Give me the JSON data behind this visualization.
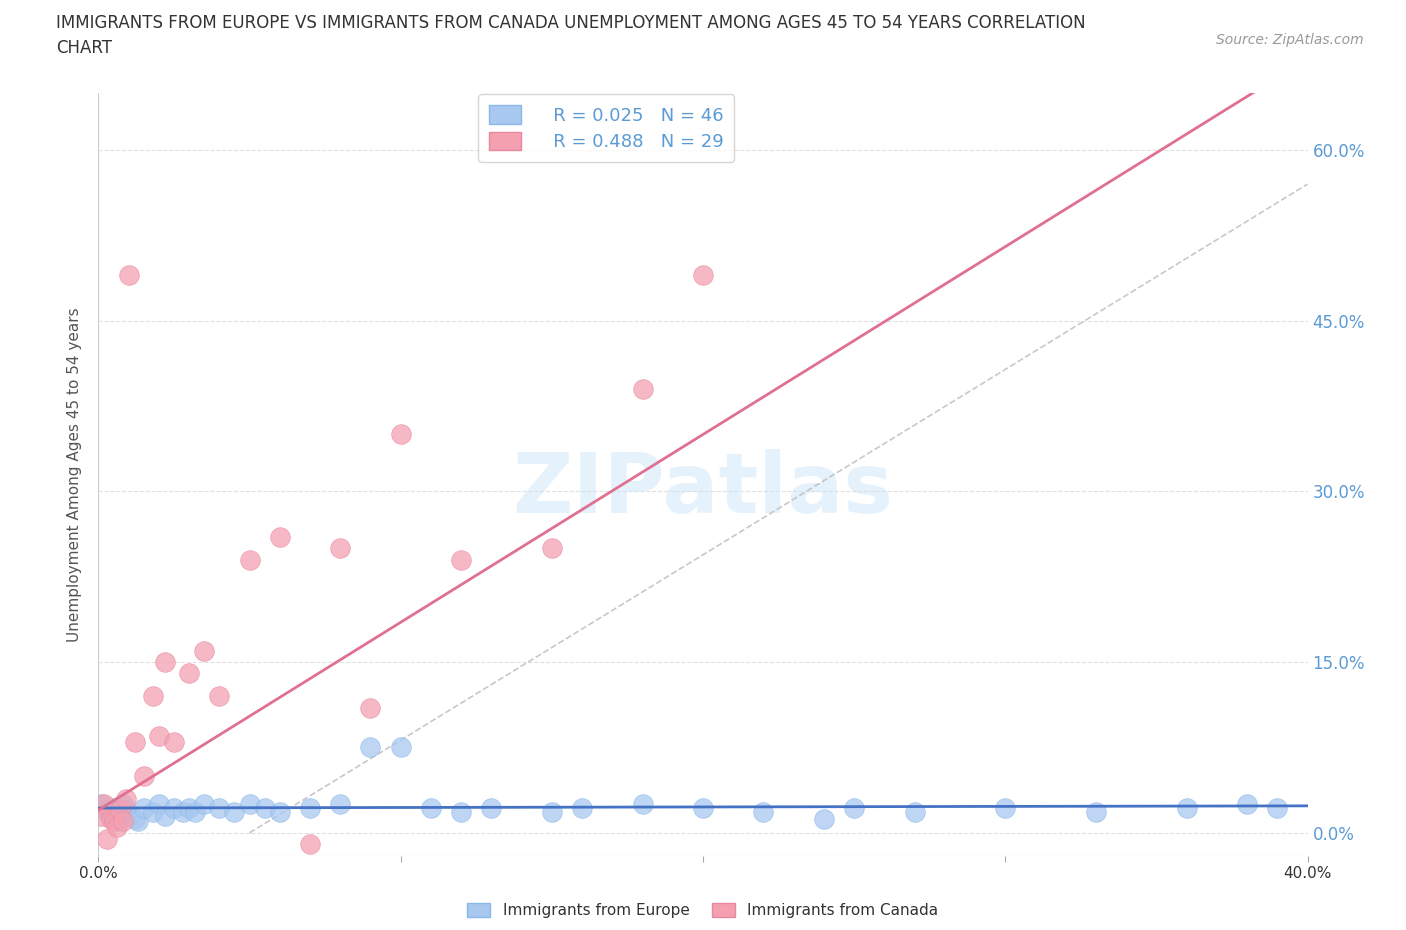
{
  "title": "IMMIGRANTS FROM EUROPE VS IMMIGRANTS FROM CANADA UNEMPLOYMENT AMONG AGES 45 TO 54 YEARS CORRELATION\nCHART",
  "source": "Source: ZipAtlas.com",
  "ylabel": "Unemployment Among Ages 45 to 54 years",
  "xlim": [
    0.0,
    0.4
  ],
  "ylim": [
    -0.02,
    0.65
  ],
  "yticks": [
    0.0,
    0.15,
    0.3,
    0.45,
    0.6
  ],
  "ytick_labels": [
    "0.0%",
    "15.0%",
    "30.0%",
    "45.0%",
    "60.0%"
  ],
  "xticks": [
    0.0,
    0.1,
    0.2,
    0.3,
    0.4
  ],
  "xtick_labels": [
    "0.0%",
    "",
    "",
    "",
    "40.0%"
  ],
  "europe_color": "#a8c8f0",
  "canada_color": "#f4a0b0",
  "europe_line_color": "#4472c4",
  "canada_line_color": "#e07090",
  "europe_R": 0.025,
  "europe_N": 46,
  "canada_R": 0.488,
  "canada_N": 29,
  "europe_x": [
    0.001,
    0.002,
    0.003,
    0.004,
    0.005,
    0.006,
    0.007,
    0.008,
    0.009,
    0.01,
    0.012,
    0.013,
    0.015,
    0.018,
    0.02,
    0.022,
    0.025,
    0.028,
    0.03,
    0.032,
    0.035,
    0.04,
    0.045,
    0.05,
    0.055,
    0.06,
    0.07,
    0.08,
    0.09,
    0.1,
    0.11,
    0.12,
    0.13,
    0.15,
    0.16,
    0.18,
    0.2,
    0.22,
    0.24,
    0.25,
    0.27,
    0.3,
    0.33,
    0.36,
    0.38,
    0.39
  ],
  "europe_y": [
    0.025,
    0.02,
    0.018,
    0.015,
    0.022,
    0.01,
    0.018,
    0.025,
    0.02,
    0.015,
    0.012,
    0.01,
    0.022,
    0.018,
    0.025,
    0.015,
    0.022,
    0.018,
    0.022,
    0.018,
    0.025,
    0.022,
    0.018,
    0.025,
    0.022,
    0.018,
    0.022,
    0.025,
    0.075,
    0.075,
    0.022,
    0.018,
    0.022,
    0.018,
    0.022,
    0.025,
    0.022,
    0.018,
    0.012,
    0.022,
    0.018,
    0.022,
    0.018,
    0.022,
    0.025,
    0.022
  ],
  "canada_x": [
    0.001,
    0.002,
    0.003,
    0.004,
    0.005,
    0.006,
    0.007,
    0.008,
    0.009,
    0.01,
    0.012,
    0.015,
    0.018,
    0.02,
    0.022,
    0.025,
    0.03,
    0.035,
    0.04,
    0.05,
    0.06,
    0.07,
    0.08,
    0.09,
    0.1,
    0.12,
    0.15,
    0.18,
    0.2
  ],
  "canada_y": [
    0.015,
    0.025,
    -0.005,
    0.012,
    0.01,
    0.005,
    0.02,
    0.01,
    0.03,
    0.49,
    0.08,
    0.05,
    0.12,
    0.085,
    0.15,
    0.08,
    0.14,
    0.16,
    0.12,
    0.24,
    0.26,
    -0.01,
    0.25,
    0.11,
    0.35,
    0.24,
    0.25,
    0.39,
    0.49
  ],
  "watermark": "ZIPatlas",
  "bg_color": "#ffffff",
  "grid_color": "#cccccc"
}
